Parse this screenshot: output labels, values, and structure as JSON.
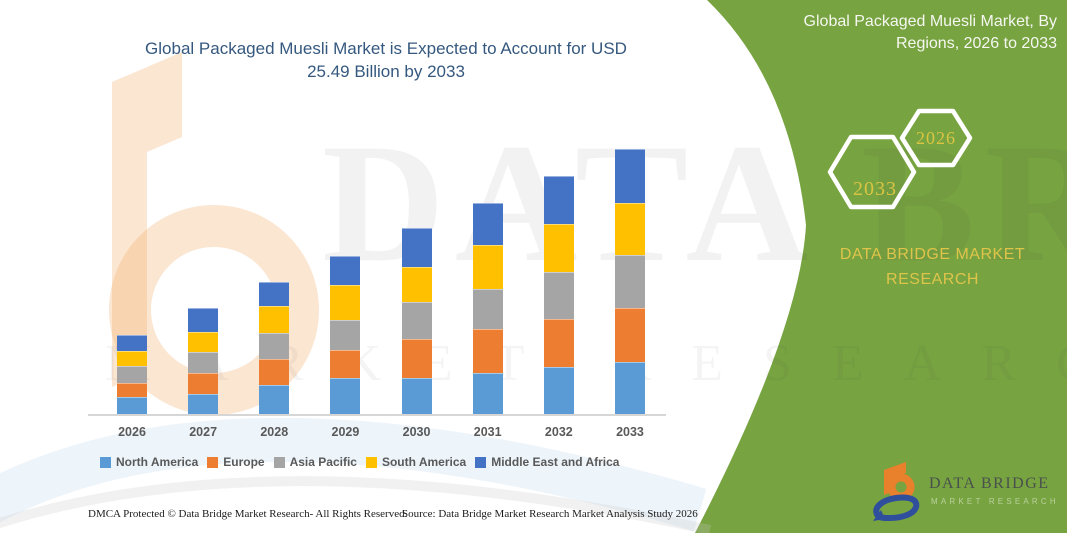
{
  "left_panel": {
    "title_lines": [
      "Global Packaged Muesli Market is Expected to Account for USD",
      "25.49 Billion by 2033"
    ],
    "title_color": "#35587E",
    "footer_dmca": "DMCA Protected © Data Bridge Market Research-  All Rights Reserved.",
    "footer_source": "Source: Data Bridge Market Research  Market Analysis Study 2026"
  },
  "right_panel": {
    "background_color": "#77A341",
    "title_lines": [
      "Global Packaged Muesli Market, By",
      "Regions, 2026 to 2033"
    ],
    "hexagons": [
      {
        "label": "2033"
      },
      {
        "label": "2026"
      }
    ],
    "hexagon_label_color": "#D9C542",
    "brand_lines": [
      "DATA BRIDGE MARKET",
      "RESEARCH"
    ],
    "logo": {
      "name": "DATA BRIDGE",
      "subtitle": "MARKET RESEARCH"
    }
  },
  "watermark": {
    "line1": "DATA BRIDGE",
    "line2": "MARKET RESEARCH"
  },
  "chart_data": {
    "type": "bar",
    "stacked": true,
    "title": "Global Packaged Muesli Market is Expected to Account for USD 25.49 Billion by 2033",
    "unit": "USD Billion",
    "xlabel": "",
    "ylabel": "",
    "ylim": [
      0,
      26
    ],
    "gridlines": false,
    "y_axis_visible": false,
    "legend_position": "bottom",
    "categories": [
      "2026",
      "2027",
      "2028",
      "2029",
      "2030",
      "2031",
      "2032",
      "2033"
    ],
    "series": [
      {
        "name": "North America",
        "color": "#5B9BD5",
        "values": [
          1.72,
          2.01,
          2.87,
          3.55,
          3.55,
          4.03,
          4.6,
          5.08
        ]
      },
      {
        "name": "Europe",
        "color": "#ED7D31",
        "values": [
          1.34,
          2.01,
          2.49,
          2.68,
          3.74,
          4.22,
          4.6,
          5.17
        ]
      },
      {
        "name": "Asia Pacific",
        "color": "#A5A5A5",
        "values": [
          1.63,
          2.01,
          2.49,
          2.88,
          3.55,
          3.83,
          4.5,
          5.08
        ]
      },
      {
        "name": "South America",
        "color": "#FFC000",
        "values": [
          1.44,
          1.92,
          2.59,
          3.35,
          3.35,
          4.22,
          4.6,
          4.98
        ]
      },
      {
        "name": "Middle East and Africa",
        "color": "#4472C4",
        "values": [
          1.53,
          2.3,
          2.3,
          2.78,
          3.74,
          4.03,
          4.6,
          5.18
        ]
      }
    ],
    "totals_estimated": [
      7.66,
      10.25,
      12.74,
      15.24,
      17.93,
      20.33,
      22.9,
      25.49
    ],
    "final_year_total_label": "25.49"
  }
}
